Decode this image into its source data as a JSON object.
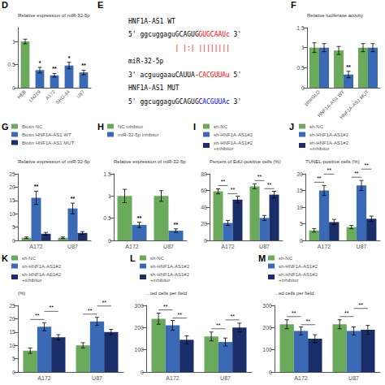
{
  "chart_data": [
    {
      "type": "bar",
      "title": "D",
      "ylabel": "Relative expression of miR-32-5p",
      "categories": [
        "HEB",
        "LN229",
        "A172",
        "SHG-44",
        "U87"
      ],
      "values": [
        1.0,
        0.38,
        0.27,
        0.48,
        0.33
      ],
      "errors": [
        0.05,
        0.06,
        0.04,
        0.07,
        0.05
      ],
      "colors": [
        "#6aaa5a",
        "#3a6ab5",
        "#3a6ab5",
        "#3a6ab5",
        "#3a6ab5"
      ],
      "stars": [
        null,
        "*",
        "**",
        "*",
        "**"
      ],
      "ylim": [
        0,
        1.3
      ],
      "yticks": [
        0,
        0.5,
        1
      ],
      "grid": false
    },
    {
      "type": "text",
      "title": "E",
      "annotations": [
        [
          {
            "text": "HNF1A-AS1 WT"
          }
        ],
        [
          {
            "text": "5' ggcuggaguGCAGUG"
          },
          {
            "text": "GUGCAAUc",
            "color": "red"
          },
          {
            "text": " 3'"
          }
        ],
        [
          {
            "text": "| |:| ||||||||",
            "color": "red"
          }
        ],
        [
          {
            "text": "miR-32-5p"
          }
        ],
        [
          {
            "text": "3' acguugaauCAUUA-"
          },
          {
            "text": "CACGUUAu",
            "color": "red"
          },
          {
            "text": " 5'"
          }
        ],
        [
          {
            "text": "HNF1A-AS1 MUT"
          }
        ],
        [
          {
            "text": "5' ggcuggaguGCAGUG"
          },
          {
            "text": "CACGUUAc",
            "color": "blue"
          },
          {
            "text": " 3'"
          }
        ]
      ]
    },
    {
      "type": "bar",
      "title": "F",
      "ylabel": "Relative luciferase activity",
      "categories": [
        "pmirGLO",
        "HNF1A-AS1 WT",
        "HNF1A-AS1 MUT"
      ],
      "series": [
        {
          "color": "#6aaa5a",
          "values": [
            1.0,
            0.93,
            1.0
          ],
          "errors": [
            0.12,
            0.1,
            0.1
          ]
        },
        {
          "color": "#3a6ab5",
          "values": [
            1.0,
            0.33,
            1.0
          ],
          "errors": [
            0.1,
            0.08,
            0.1
          ],
          "stars": [
            null,
            "**",
            null
          ]
        }
      ],
      "ylim": [
        0,
        1.5
      ],
      "yticks": [
        0,
        0.5,
        1,
        1.5
      ],
      "grid": false
    },
    {
      "type": "bar",
      "title": "G",
      "ylabel": "Relative expression of miR-32-5p",
      "categories": [
        "A172",
        "U87"
      ],
      "series": [
        {
          "name": "Biotin NC",
          "color": "#6aaa5a",
          "values": [
            1.0,
            1.0
          ],
          "errors": [
            0.3,
            0.3
          ]
        },
        {
          "name": "Biotin HNF1A-AS1 WT",
          "color": "#3a6ab5",
          "values": [
            16.0,
            12.0
          ],
          "errors": [
            2.5,
            2.0
          ],
          "stars": [
            "**",
            "**"
          ]
        },
        {
          "name": "Biotin HNF1A-AS1 MUT",
          "color": "#1a2f6a",
          "values": [
            2.5,
            2.8
          ],
          "errors": [
            0.5,
            0.5
          ]
        }
      ],
      "ylim": [
        0,
        25
      ],
      "yticks": [
        0,
        5,
        10,
        15,
        20,
        25
      ],
      "grid": false,
      "legend": "upper left"
    },
    {
      "type": "bar",
      "title": "H",
      "ylabel": "Relative expression of miR-32-5p",
      "categories": [
        "A172",
        "U87"
      ],
      "series": [
        {
          "name": "NC inhibitor",
          "color": "#6aaa5a",
          "values": [
            1.0,
            1.0
          ],
          "errors": [
            0.15,
            0.12
          ]
        },
        {
          "name": "miR-32-5p inhibitor",
          "color": "#3a6ab5",
          "values": [
            0.35,
            0.22
          ],
          "errors": [
            0.06,
            0.04
          ],
          "stars": [
            "**",
            "**"
          ]
        }
      ],
      "ylim": [
        0,
        1.5
      ],
      "yticks": [
        0,
        0.5,
        1,
        1.5
      ],
      "grid": false,
      "legend": "upper left"
    },
    {
      "type": "bar",
      "title": "I",
      "ylabel": "Percent of EdU-positive cells (%)",
      "categories": [
        "A172",
        "U87"
      ],
      "series": [
        {
          "name": "sh-NC",
          "color": "#6aaa5a",
          "values": [
            59,
            65
          ],
          "errors": [
            3,
            3
          ]
        },
        {
          "name": "sh-HNF1A-AS1#2",
          "color": "#3a6ab5",
          "values": [
            21,
            27
          ],
          "errors": [
            3,
            3
          ]
        },
        {
          "name": "sh-HNF1A-AS1#2\n+inhibitor",
          "color": "#1a2f6a",
          "values": [
            49,
            55
          ],
          "errors": [
            4,
            4
          ]
        }
      ],
      "brackets": [
        {
          "x": "A172",
          "between": [
            "sh-NC",
            "sh-HNF1A-AS1#2"
          ],
          "text": "**"
        },
        {
          "x": "A172",
          "between": [
            "sh-HNF1A-AS1#2",
            "sh-HNF1A-AS1#2\n+inhibitor"
          ],
          "text": "**"
        },
        {
          "x": "U87",
          "between": [
            "sh-NC",
            "sh-HNF1A-AS1#2"
          ],
          "text": "**"
        },
        {
          "x": "U87",
          "between": [
            "sh-HNF1A-AS1#2",
            "sh-HNF1A-AS1#2\n+inhibitor"
          ],
          "text": "**"
        }
      ],
      "ylim": [
        0,
        80
      ],
      "yticks": [
        0,
        20,
        40,
        60,
        80
      ],
      "grid": false,
      "legend": "upper left"
    },
    {
      "type": "bar",
      "title": "J",
      "ylabel": "TUNEL-positive cells (%)",
      "categories": [
        "A172",
        "U87"
      ],
      "series": [
        {
          "name": "sh-NC",
          "color": "#6aaa5a",
          "values": [
            3.0,
            4.0
          ],
          "errors": [
            0.5,
            0.5
          ]
        },
        {
          "name": "sh-HNF1A-AS1#2",
          "color": "#3a6ab5",
          "values": [
            15.0,
            16.5
          ],
          "errors": [
            1.5,
            1.5
          ]
        },
        {
          "name": "sh-HNF1A-AS1#2\n+inhibitor",
          "color": "#1a2f6a",
          "values": [
            5.5,
            6.5
          ],
          "errors": [
            0.8,
            0.8
          ]
        }
      ],
      "brackets": [
        {
          "x": "A172",
          "between": [
            "sh-NC",
            "sh-HNF1A-AS1#2"
          ],
          "text": "**"
        },
        {
          "x": "A172",
          "between": [
            "sh-HNF1A-AS1#2",
            "sh-HNF1A-AS1#2\n+inhibitor"
          ],
          "text": "**"
        },
        {
          "x": "U87",
          "between": [
            "sh-NC",
            "sh-HNF1A-AS1#2"
          ],
          "text": "**"
        },
        {
          "x": "U87",
          "between": [
            "sh-HNF1A-AS1#2",
            "sh-HNF1A-AS1#2\n+inhibitor"
          ],
          "text": "**"
        }
      ],
      "ylim": [
        0,
        20
      ],
      "yticks": [
        0,
        5,
        10,
        15,
        20
      ],
      "grid": false,
      "legend": "upper left"
    },
    {
      "type": "bar",
      "title": "K",
      "ylabel": "(%)",
      "categories": [
        "A172",
        "U87"
      ],
      "series": [
        {
          "name": "sh-NC",
          "color": "#6aaa5a",
          "values": [
            8.0,
            10.0
          ],
          "errors": [
            1.0,
            1.0
          ]
        },
        {
          "name": "sh-HNF1A-AS1#2",
          "color": "#3a6ab5",
          "values": [
            17.0,
            19.0
          ],
          "errors": [
            1.5,
            1.5
          ]
        },
        {
          "name": "sh-HNF1A-AS1#2\n+inhibitor",
          "color": "#1a2f6a",
          "values": [
            13.0,
            15.0
          ],
          "errors": [
            1.0,
            1.0
          ]
        }
      ],
      "brackets": [
        {
          "x": "A172",
          "between": [
            "sh-NC",
            "sh-HNF1A-AS1#2"
          ],
          "text": "**"
        },
        {
          "x": "A172",
          "between": [
            "sh-HNF1A-AS1#2",
            "sh-HNF1A-AS1#2\n+inhibitor"
          ],
          "text": "**"
        },
        {
          "x": "U87",
          "between": [
            "sh-NC",
            "sh-HNF1A-AS1#2"
          ],
          "text": "**"
        },
        {
          "x": "U87",
          "between": [
            "sh-HNF1A-AS1#2",
            "sh-HNF1A-AS1#2\n+inhibitor"
          ],
          "text": "**"
        }
      ],
      "ylim": [
        0,
        25
      ],
      "yticks": [
        0,
        5,
        10,
        15,
        20,
        25
      ],
      "grid": false,
      "legend": "upper left"
    },
    {
      "type": "bar",
      "title": "L",
      "ylabel": "...ted cells per field",
      "categories": [
        "A172",
        "U87"
      ],
      "series": [
        {
          "name": "sh-NC",
          "color": "#6aaa5a",
          "values": [
            240,
            160
          ],
          "errors": [
            25,
            20
          ]
        },
        {
          "name": "sh-HNF1A-AS1#2",
          "color": "#3a6ab5",
          "values": [
            210,
            135
          ],
          "errors": [
            22,
            18
          ]
        },
        {
          "name": "sh-HNF1A-AS1#2\n+inhibitor",
          "color": "#1a2f6a",
          "values": [
            145,
            200
          ],
          "errors": [
            18,
            20
          ]
        }
      ],
      "brackets": [
        {
          "x": "A172",
          "between": [
            "sh-NC",
            "sh-HNF1A-AS1#2"
          ],
          "text": "**"
        },
        {
          "x": "A172",
          "between": [
            "sh-HNF1A-AS1#2",
            "sh-HNF1A-AS1#2\n+inhibitor"
          ],
          "text": "**"
        },
        {
          "x": "U87",
          "between": [
            "sh-NC",
            "sh-HNF1A-AS1#2"
          ],
          "text": "**"
        },
        {
          "x": "U87",
          "between": [
            "sh-HNF1A-AS1#2",
            "sh-HNF1A-AS1#2\n+inhibitor"
          ],
          "text": "**"
        }
      ],
      "ylim": [
        0,
        300
      ],
      "yticks": [
        0,
        100,
        200,
        300
      ],
      "grid": false,
      "legend": "upper left"
    },
    {
      "type": "bar",
      "title": "M",
      "ylabel": "...ed cells per field",
      "categories": [
        "A172",
        "U87"
      ],
      "series": [
        {
          "name": "sh-NC",
          "color": "#6aaa5a",
          "values": [
            215,
            215
          ],
          "errors": [
            20,
            20
          ]
        },
        {
          "name": "sh-HNF1A-AS1#2",
          "color": "#3a6ab5",
          "values": [
            185,
            185
          ],
          "errors": [
            18,
            18
          ]
        },
        {
          "name": "sh-HNF1A-AS1#2\n+inhibitor",
          "color": "#1a2f6a",
          "values": [
            150,
            190
          ],
          "errors": [
            18,
            20
          ]
        }
      ],
      "brackets": [
        {
          "x": "A172",
          "between": [
            "sh-NC",
            "sh-HNF1A-AS1#2"
          ],
          "text": "**"
        },
        {
          "x": "A172",
          "between": [
            "sh-HNF1A-AS1#2",
            "sh-HNF1A-AS1#2\n+inhibitor"
          ],
          "text": "**"
        },
        {
          "x": "U87",
          "between": [
            "sh-NC",
            "sh-HNF1A-AS1#2"
          ],
          "text": "**"
        },
        {
          "x": "U87",
          "between": [
            "sh-HNF1A-AS1#2",
            "sh-HNF1A-AS1#2\n+inhibitor"
          ],
          "text": "**"
        }
      ],
      "ylim": [
        0,
        300
      ],
      "yticks": [
        0,
        100,
        200,
        300
      ],
      "grid": false,
      "legend": "upper left"
    }
  ]
}
